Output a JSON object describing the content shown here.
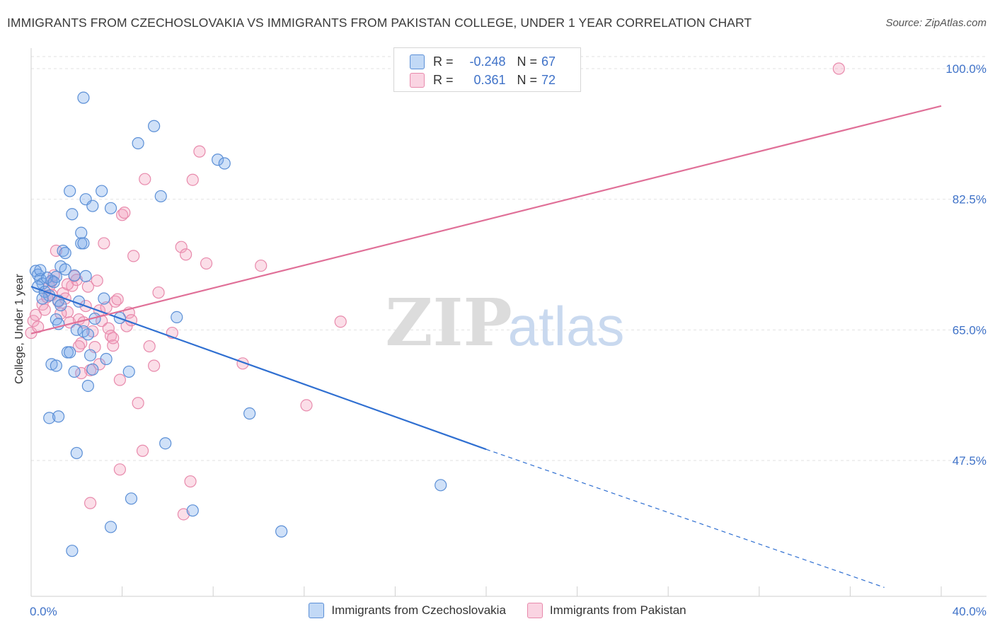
{
  "title": "IMMIGRANTS FROM CZECHOSLOVAKIA VS IMMIGRANTS FROM PAKISTAN COLLEGE, UNDER 1 YEAR CORRELATION CHART",
  "source": "Source: ZipAtlas.com",
  "watermark": {
    "zip": "ZIP",
    "atlas": "atlas"
  },
  "legend_top": {
    "rows": [
      {
        "r_label": "R =",
        "r_value": "-0.248",
        "n_label": "N =",
        "n_value": "67"
      },
      {
        "r_label": "R =",
        "r_value": "0.361",
        "n_label": "N =",
        "n_value": "72"
      }
    ]
  },
  "legend_bottom": {
    "items": [
      "Immigrants from Czechoslovakia",
      "Immigrants from Pakistan"
    ]
  },
  "colors": {
    "blue_fill": "rgba(120,170,235,0.35)",
    "blue_stroke": "#5b8fd6",
    "blue_line": "#2f6fd1",
    "pink_fill": "rgba(244,160,190,0.35)",
    "pink_stroke": "#e88aac",
    "pink_line": "#e07098",
    "tick_label": "#3f72c8",
    "grid": "#e2e2e2"
  },
  "chart_data": {
    "type": "scatter",
    "title": "IMMIGRANTS FROM CZECHOSLOVAKIA VS IMMIGRANTS FROM PAKISTAN COLLEGE, UNDER 1 YEAR CORRELATION CHART",
    "xlabel": "",
    "ylabel": "College, Under 1 year",
    "xlim": [
      0,
      40
    ],
    "ylim": [
      31.0,
      102.0
    ],
    "x_tick_labels": [
      "0.0%",
      "40.0%"
    ],
    "x_tick_values": [
      0,
      4,
      8,
      12,
      16,
      20,
      24,
      28,
      32,
      36,
      40
    ],
    "y_ticks": [
      {
        "value": 47.5,
        "label": "47.5%"
      },
      {
        "value": 65.0,
        "label": "65.0%"
      },
      {
        "value": 82.5,
        "label": "82.5%"
      },
      {
        "value": 100.0,
        "label": "100.0%"
      }
    ],
    "series": [
      {
        "name": "Immigrants from Czechoslovakia",
        "R": -0.248,
        "N": 67,
        "trend": {
          "x0": 0.0,
          "y0": 70.8,
          "x1": 20.0,
          "y1": 49.0,
          "dash_to_x": 37.5,
          "dash_to_y": 30.5
        },
        "points": [
          [
            0.2,
            72.9
          ],
          [
            0.3,
            72.4
          ],
          [
            0.4,
            71.8
          ],
          [
            0.5,
            71.2
          ],
          [
            0.3,
            70.8
          ],
          [
            0.6,
            70.1
          ],
          [
            0.8,
            69.6
          ],
          [
            0.5,
            69.2
          ],
          [
            0.9,
            71.6
          ],
          [
            1.1,
            72.1
          ],
          [
            0.7,
            72.0
          ],
          [
            1.0,
            71.4
          ],
          [
            1.4,
            75.6
          ],
          [
            1.5,
            75.3
          ],
          [
            1.3,
            73.5
          ],
          [
            1.5,
            73.1
          ],
          [
            1.2,
            68.9
          ],
          [
            1.3,
            68.3
          ],
          [
            1.1,
            66.4
          ],
          [
            1.2,
            65.8
          ],
          [
            1.6,
            62.0
          ],
          [
            1.7,
            62.0
          ],
          [
            0.9,
            60.4
          ],
          [
            1.1,
            60.2
          ],
          [
            1.9,
            59.4
          ],
          [
            2.0,
            65.0
          ],
          [
            2.3,
            64.8
          ],
          [
            2.5,
            64.4
          ],
          [
            2.6,
            61.6
          ],
          [
            2.7,
            59.7
          ],
          [
            2.5,
            57.5
          ],
          [
            3.3,
            61.1
          ],
          [
            3.2,
            69.2
          ],
          [
            3.5,
            81.3
          ],
          [
            3.9,
            66.6
          ],
          [
            4.3,
            59.4
          ],
          [
            2.1,
            68.8
          ],
          [
            2.4,
            72.2
          ],
          [
            2.2,
            76.6
          ],
          [
            2.3,
            76.6
          ],
          [
            2.2,
            78.0
          ],
          [
            1.8,
            80.5
          ],
          [
            1.7,
            83.6
          ],
          [
            2.4,
            82.5
          ],
          [
            2.7,
            81.6
          ],
          [
            3.1,
            83.6
          ],
          [
            2.3,
            96.1
          ],
          [
            4.7,
            90.0
          ],
          [
            5.4,
            92.3
          ],
          [
            5.7,
            82.9
          ],
          [
            8.2,
            87.8
          ],
          [
            8.5,
            87.3
          ],
          [
            6.4,
            66.7
          ],
          [
            0.8,
            53.2
          ],
          [
            1.2,
            53.4
          ],
          [
            2.0,
            48.5
          ],
          [
            5.9,
            49.8
          ],
          [
            9.6,
            53.8
          ],
          [
            4.4,
            42.4
          ],
          [
            7.1,
            40.8
          ],
          [
            3.5,
            38.6
          ],
          [
            11.0,
            38.0
          ],
          [
            1.8,
            35.4
          ],
          [
            18.0,
            44.2
          ],
          [
            2.8,
            66.5
          ],
          [
            1.9,
            72.3
          ],
          [
            0.4,
            73.0
          ]
        ]
      },
      {
        "name": "Immigrants from Pakistan",
        "R": 0.361,
        "N": 72,
        "trend": {
          "x0": 0.0,
          "y0": 64.5,
          "x1": 40.0,
          "y1": 95.0
        },
        "points": [
          [
            0.0,
            64.6
          ],
          [
            0.1,
            66.2
          ],
          [
            0.2,
            67.0
          ],
          [
            0.3,
            65.4
          ],
          [
            0.5,
            68.4
          ],
          [
            0.7,
            69.4
          ],
          [
            0.8,
            70.8
          ],
          [
            0.9,
            71.5
          ],
          [
            1.0,
            72.3
          ],
          [
            1.1,
            75.6
          ],
          [
            1.2,
            68.8
          ],
          [
            1.4,
            69.9
          ],
          [
            1.5,
            69.2
          ],
          [
            1.6,
            67.4
          ],
          [
            1.7,
            66.0
          ],
          [
            1.8,
            70.9
          ],
          [
            1.9,
            72.2
          ],
          [
            2.0,
            71.7
          ],
          [
            2.1,
            66.4
          ],
          [
            2.2,
            63.2
          ],
          [
            2.3,
            66.0
          ],
          [
            2.4,
            68.2
          ],
          [
            2.5,
            70.8
          ],
          [
            2.6,
            59.6
          ],
          [
            2.7,
            64.8
          ],
          [
            2.8,
            62.7
          ],
          [
            2.9,
            71.6
          ],
          [
            3.0,
            67.6
          ],
          [
            3.1,
            66.2
          ],
          [
            3.2,
            76.6
          ],
          [
            3.3,
            68.0
          ],
          [
            3.4,
            65.2
          ],
          [
            3.5,
            64.2
          ],
          [
            3.6,
            62.9
          ],
          [
            3.7,
            68.8
          ],
          [
            3.8,
            69.1
          ],
          [
            3.9,
            58.3
          ],
          [
            4.0,
            80.4
          ],
          [
            4.1,
            80.7
          ],
          [
            4.2,
            65.5
          ],
          [
            4.3,
            67.3
          ],
          [
            4.5,
            74.9
          ],
          [
            4.7,
            55.2
          ],
          [
            4.9,
            48.8
          ],
          [
            5.0,
            85.2
          ],
          [
            5.2,
            62.8
          ],
          [
            5.4,
            60.2
          ],
          [
            5.6,
            70.0
          ],
          [
            6.2,
            64.6
          ],
          [
            6.6,
            76.1
          ],
          [
            6.8,
            75.1
          ],
          [
            7.1,
            85.1
          ],
          [
            7.4,
            88.9
          ],
          [
            7.7,
            73.9
          ],
          [
            7.0,
            44.7
          ],
          [
            6.7,
            40.3
          ],
          [
            3.9,
            46.3
          ],
          [
            2.6,
            41.8
          ],
          [
            9.3,
            60.5
          ],
          [
            10.1,
            73.6
          ],
          [
            12.1,
            54.9
          ],
          [
            13.6,
            66.1
          ],
          [
            35.5,
            100.0
          ],
          [
            2.1,
            62.8
          ],
          [
            0.6,
            67.7
          ],
          [
            1.3,
            67.2
          ],
          [
            3.0,
            60.4
          ],
          [
            2.2,
            59.2
          ],
          [
            4.4,
            66.3
          ],
          [
            3.6,
            63.9
          ],
          [
            0.9,
            69.7
          ],
          [
            1.6,
            71.1
          ]
        ]
      }
    ]
  }
}
